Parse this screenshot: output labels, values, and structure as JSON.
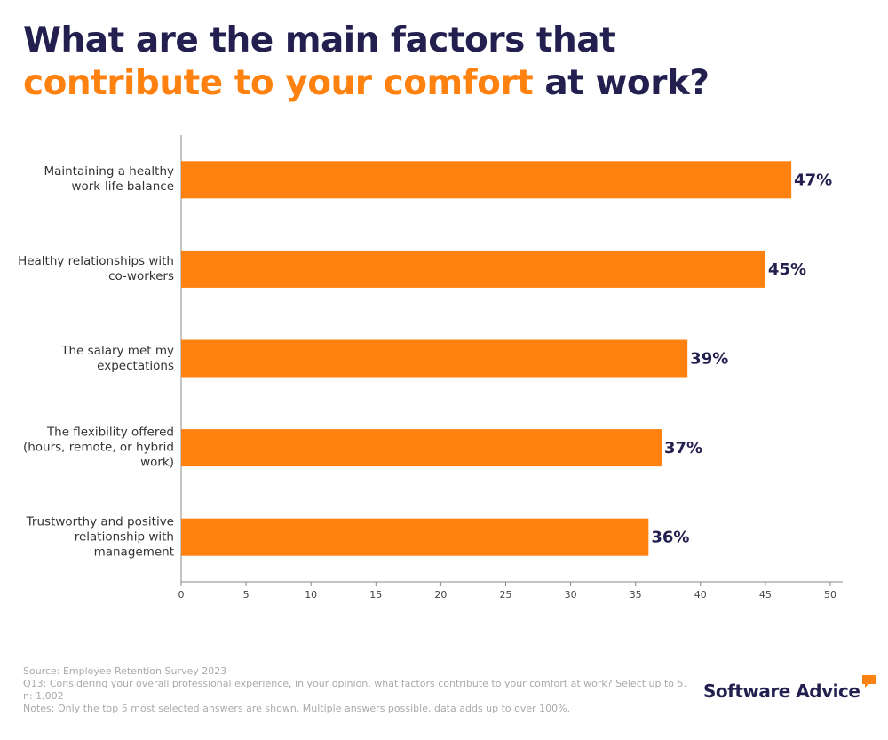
{
  "chart_data": {
    "type": "barh",
    "title": [
      "What are the main factors that ",
      "contribute to your comfort",
      " at work?"
    ],
    "title_color": "#231f4f",
    "highlight_color": "#ff8210",
    "categories": [
      "Maintaining a healthy work-life balance",
      "Healthy relationships with co-workers",
      "The salary met my expectations",
      "The flexibility offered (hours, remote, or hybrid work)",
      "Trustworthy and positive relationship with management"
    ],
    "values": [
      47,
      45,
      39,
      37,
      36
    ],
    "value_labels": [
      "47%",
      "45%",
      "39%",
      "37%",
      "36%"
    ],
    "color": "#ff8210",
    "xlim": [
      0,
      50
    ],
    "xticks": [
      0,
      5,
      10,
      15,
      20,
      25,
      30,
      35,
      40,
      45,
      50
    ],
    "notes": [
      "Source: Employee Retention Survey 2023",
      "Q13: Considering your overall professional experience, in your opinion, what factors contribute to your comfort at work? Select up to 5.",
      "n: 1,002",
      "Notes: Only the top 5 most selected answers are shown. Multiple answers possible, data adds up to over 100%."
    ],
    "logo": "Software Advice"
  }
}
